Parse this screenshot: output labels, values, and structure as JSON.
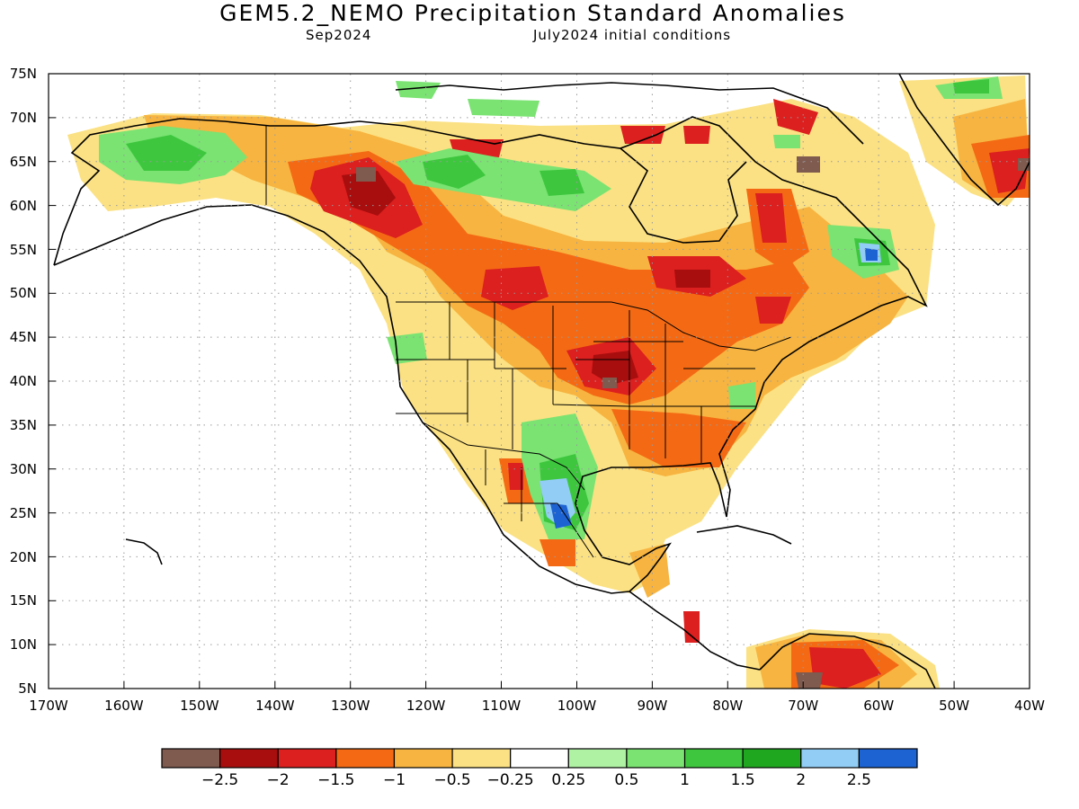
{
  "header": {
    "title": "GEM5.2_NEMO Precipitation Standard Anomalies",
    "valid_month": "Sep2024",
    "initial_conditions": "July2024 initial conditions"
  },
  "map": {
    "lat_labels": [
      "75N",
      "70N",
      "65N",
      "60N",
      "55N",
      "50N",
      "45N",
      "40N",
      "35N",
      "30N",
      "25N",
      "20N",
      "15N",
      "10N",
      "5N"
    ],
    "lon_labels": [
      "170W",
      "160W",
      "150W",
      "140W",
      "130W",
      "120W",
      "110W",
      "100W",
      "90W",
      "80W",
      "70W",
      "60W",
      "50W",
      "40W"
    ],
    "lat_range": [
      5,
      75
    ],
    "lon_range": [
      -170,
      -40
    ],
    "gridlines": "dotted"
  },
  "colorbar": {
    "colors": [
      "#7f5a4e",
      "#a80e0e",
      "#dc1f1f",
      "#f46a14",
      "#f7b440",
      "#fbe183",
      "#ffffff",
      "#b0f2a4",
      "#7ae372",
      "#3ec73e",
      "#1fa81f",
      "#92cdf5",
      "#1e63d2"
    ],
    "labels": [
      "−2.5",
      "−2",
      "−1.5",
      "−1",
      "−0.5",
      "−0.25",
      "0.25",
      "0.5",
      "1",
      "1.5",
      "2",
      "2.5"
    ]
  }
}
